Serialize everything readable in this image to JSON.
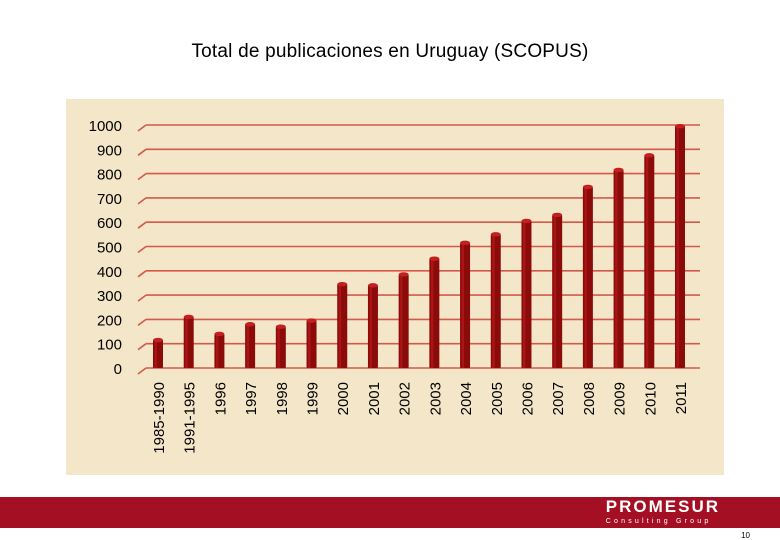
{
  "slide": {
    "title": "Total de publicaciones en Uruguay (SCOPUS)",
    "page_number": "10"
  },
  "brand": {
    "name": "PROMESUR",
    "tagline": "Consulting Group"
  },
  "colors": {
    "bar": "#8b0a0a",
    "bar_top": "#c42020",
    "grid": "#d35a4a",
    "panel": "#f4e6c8",
    "footer": "#a50f23"
  },
  "chart_data": {
    "type": "bar",
    "title": "Total de publicaciones en Uruguay (SCOPUS)",
    "xlabel": "",
    "ylabel": "",
    "ylim": [
      0,
      1000
    ],
    "yticks": [
      0,
      100,
      200,
      300,
      400,
      500,
      600,
      700,
      800,
      900,
      1000
    ],
    "grid": true,
    "legend": "none",
    "categories": [
      "1985-1990",
      "1991-1995",
      "1996",
      "1997",
      "1998",
      "1999",
      "2000",
      "2001",
      "2002",
      "2003",
      "2004",
      "2005",
      "2006",
      "2007",
      "2008",
      "2009",
      "2010",
      "2011"
    ],
    "values": [
      115,
      210,
      140,
      180,
      170,
      195,
      345,
      340,
      385,
      450,
      515,
      550,
      605,
      630,
      745,
      815,
      875,
      995
    ]
  }
}
